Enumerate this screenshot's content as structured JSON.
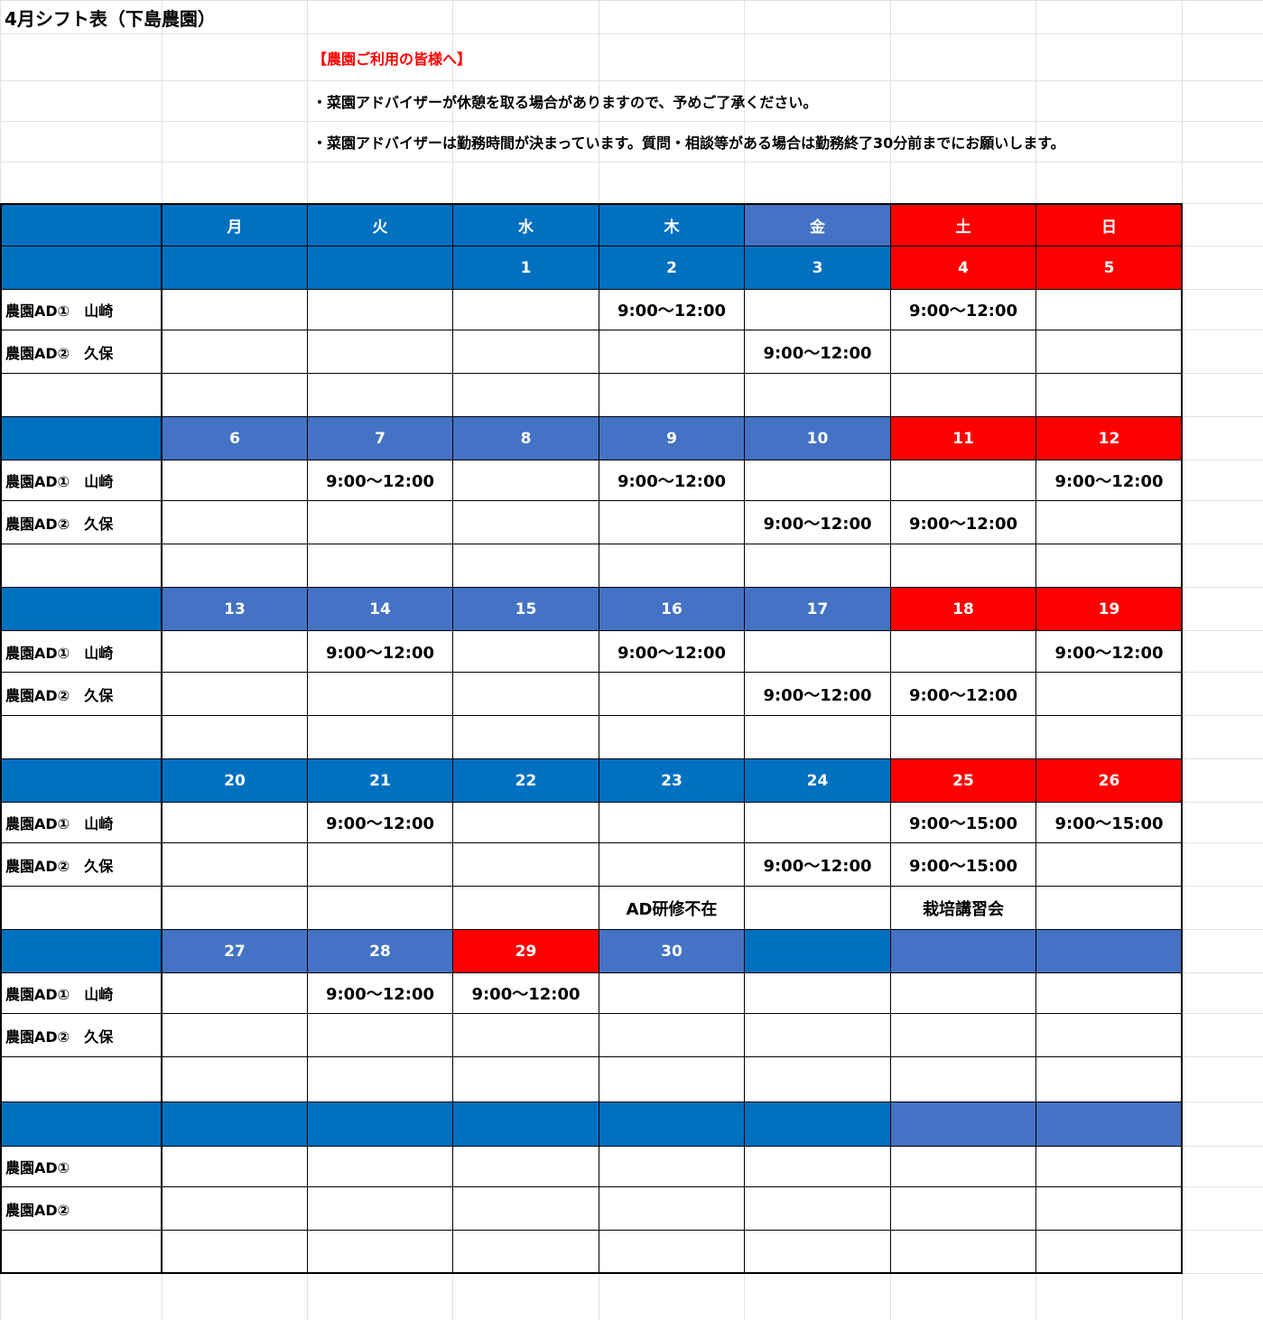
{
  "title": "4月シフト表（下島農園）",
  "notice": {
    "heading": "【農園ご利用の皆様へ】",
    "lines": [
      "・菜園アドバイザーが休憩を取る場合がありますので、予めご了承ください。",
      "・菜園アドバイザーは勤務時間が決まっています。質問・相談等がある場合は勤務終了30分前までにお願いします。"
    ]
  },
  "weekdays": [
    "月",
    "火",
    "水",
    "木",
    "金",
    "土",
    "日"
  ],
  "weekday_colors": [
    "#0070c0",
    "#0070c0",
    "#0070c0",
    "#0070c0",
    "#0070c0",
    "#4472c4",
    "#ff0000",
    "#ff0000"
  ],
  "weeks": [
    {
      "days": [
        null,
        null,
        "1",
        "2",
        "3",
        "4",
        "5"
      ],
      "header_colors": [
        "#0070c0",
        "#0070c0",
        "#0070c0",
        "#0070c0",
        "#0070c0",
        "#0070c0",
        "#ff0000",
        "#ff0000"
      ],
      "rows": [
        [
          "農園AD①　山崎",
          null,
          null,
          null,
          "9:00～12:00",
          null,
          "9:00～12:00",
          null
        ],
        [
          "農園AD②　久保",
          null,
          null,
          null,
          null,
          "9:00～12:00",
          null,
          null
        ],
        [
          null,
          null,
          null,
          null,
          null,
          null,
          null,
          null
        ]
      ]
    },
    {
      "days": [
        "6",
        "7",
        "8",
        "9",
        "10",
        "11",
        "12"
      ],
      "header_colors": [
        "#0070c0",
        "#4472c4",
        "#4472c4",
        "#4472c4",
        "#4472c4",
        "#4472c4",
        "#ff0000",
        "#ff0000"
      ],
      "rows": [
        [
          "農園AD①　山崎",
          null,
          "9:00～12:00",
          null,
          "9:00～12:00",
          null,
          null,
          "9:00～12:00"
        ],
        [
          "農園AD②　久保",
          null,
          null,
          null,
          null,
          "9:00～12:00",
          "9:00～12:00",
          null
        ],
        [
          null,
          null,
          null,
          null,
          null,
          null,
          null,
          null
        ]
      ]
    },
    {
      "days": [
        "13",
        "14",
        "15",
        "16",
        "17",
        "18",
        "19"
      ],
      "header_colors": [
        "#0070c0",
        "#4472c4",
        "#4472c4",
        "#4472c4",
        "#4472c4",
        "#4472c4",
        "#ff0000",
        "#ff0000"
      ],
      "rows": [
        [
          "農園AD①　山崎",
          null,
          "9:00～12:00",
          null,
          "9:00～12:00",
          null,
          null,
          "9:00～12:00"
        ],
        [
          "農園AD②　久保",
          null,
          null,
          null,
          null,
          "9:00～12:00",
          "9:00～12:00",
          null
        ],
        [
          null,
          null,
          null,
          null,
          null,
          null,
          null,
          null
        ]
      ]
    },
    {
      "days": [
        "20",
        "21",
        "22",
        "23",
        "24",
        "25",
        "26"
      ],
      "header_colors": [
        "#0070c0",
        "#0070c0",
        "#0070c0",
        "#0070c0",
        "#0070c0",
        "#0070c0",
        "#ff0000",
        "#ff0000"
      ],
      "rows": [
        [
          "農園AD①　山崎",
          null,
          "9:00～12:00",
          null,
          null,
          null,
          "9:00～15:00",
          "9:00～15:00"
        ],
        [
          "農園AD②　久保",
          null,
          null,
          null,
          null,
          "9:00～12:00",
          "9:00～15:00",
          null
        ],
        [
          null,
          null,
          null,
          null,
          "AD研修不在",
          null,
          "栽培講習会",
          null
        ]
      ]
    },
    {
      "days": [
        "27",
        "28",
        "29",
        "30",
        null,
        null,
        null
      ],
      "header_colors": [
        "#0070c0",
        "#4472c4",
        "#4472c4",
        "#ff0000",
        "#4472c4",
        "#0070c0",
        "#4472c4",
        "#4472c4"
      ],
      "rows": [
        [
          "農園AD①　山崎",
          null,
          "9:00～12:00",
          "9:00～12:00",
          null,
          null,
          null,
          null
        ],
        [
          "農園AD②　久保",
          null,
          null,
          null,
          null,
          null,
          null,
          null
        ],
        [
          null,
          null,
          null,
          null,
          null,
          null,
          null,
          null
        ]
      ]
    },
    {
      "days": [
        null,
        null,
        null,
        null,
        null,
        null,
        null
      ],
      "header_colors": [
        "#0070c0",
        "#0070c0",
        "#0070c0",
        "#0070c0",
        "#0070c0",
        "#0070c0",
        "#4472c4",
        "#4472c4"
      ],
      "rows": [
        [
          "農園AD①",
          null,
          null,
          null,
          null,
          null,
          null,
          null
        ],
        [
          "農園AD②",
          null,
          null,
          null,
          null,
          null,
          null,
          null
        ],
        [
          null,
          null,
          null,
          null,
          null,
          null,
          null,
          null
        ]
      ]
    }
  ]
}
